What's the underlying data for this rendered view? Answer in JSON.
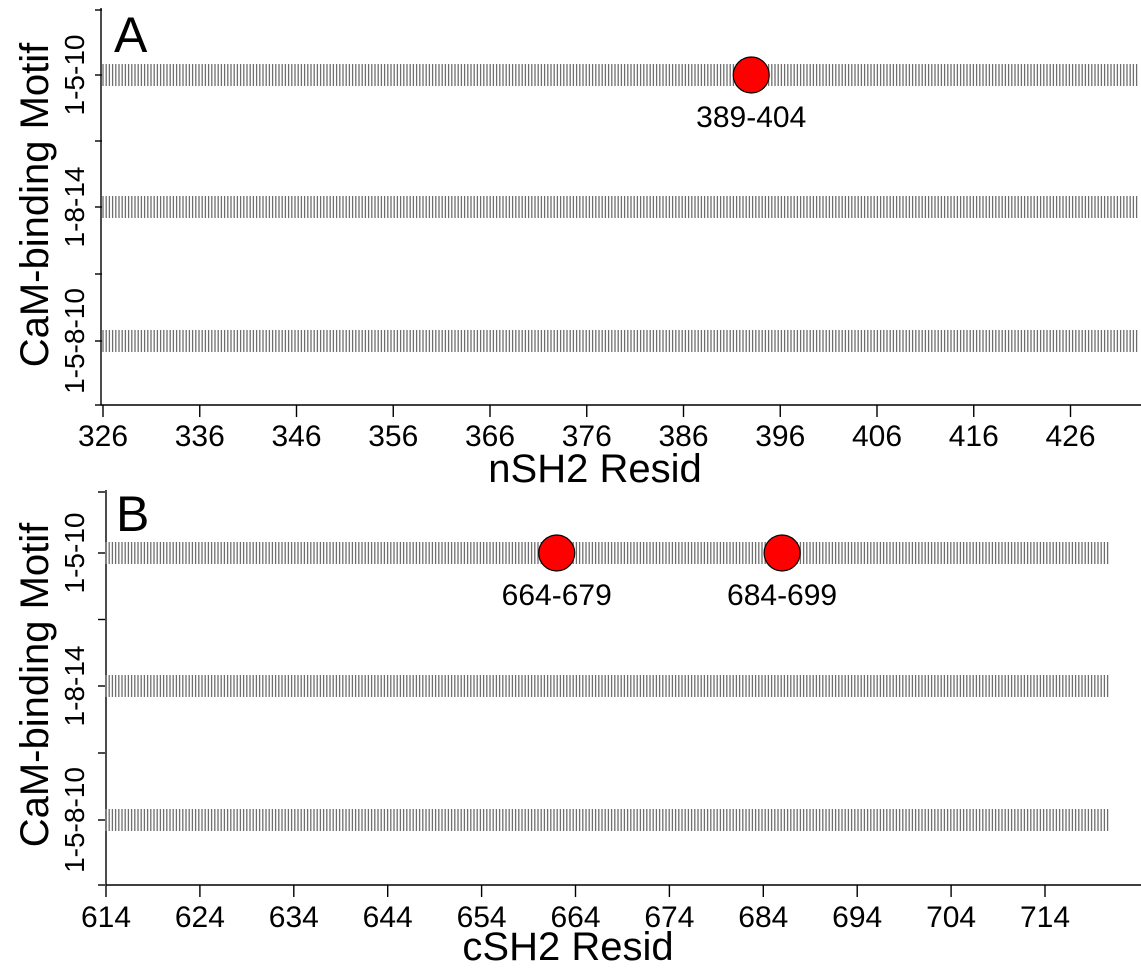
{
  "chart_data": [
    {
      "type": "scatter",
      "panel_label": "A",
      "xlabel": "nSH2 Resid",
      "ylabel": "CaM-binding Motif",
      "xlim": [
        326,
        433
      ],
      "x_ticks": [
        326,
        336,
        346,
        356,
        366,
        376,
        386,
        396,
        406,
        416,
        426
      ],
      "categories": [
        "1-5-10",
        "1-8-14",
        "1-5-8-10"
      ],
      "residue_span": [
        326,
        433
      ],
      "points": [
        {
          "category": "1-5-10",
          "x": 393,
          "label": "389-404"
        }
      ]
    },
    {
      "type": "scatter",
      "panel_label": "B",
      "xlabel": "cSH2 Resid",
      "ylabel": "CaM-binding Motif",
      "xlim": [
        614,
        721
      ],
      "x_ticks": [
        614,
        624,
        634,
        644,
        654,
        664,
        674,
        684,
        694,
        704,
        714
      ],
      "categories": [
        "1-5-10",
        "1-8-14",
        "1-5-8-10"
      ],
      "residue_span": [
        614,
        721
      ],
      "points": [
        {
          "category": "1-5-10",
          "x": 662,
          "label": "664-679"
        },
        {
          "category": "1-5-10",
          "x": 686,
          "label": "684-699"
        }
      ]
    }
  ]
}
